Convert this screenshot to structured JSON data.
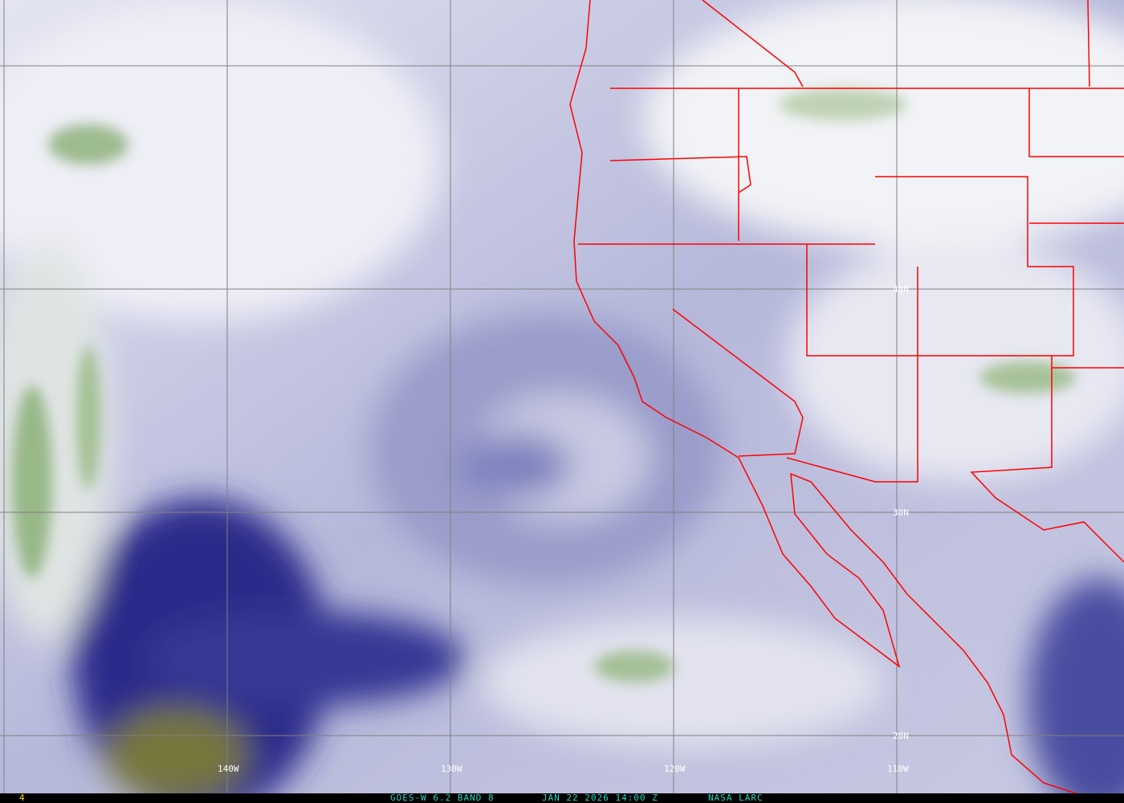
{
  "image": {
    "type": "satellite water vapor imagery",
    "colors": {
      "dry": "#1e1e7a",
      "moist": "#f2f2f8",
      "cloud_green": "#7fa865",
      "very_dry": "#7a7a3a",
      "boundaries": "#ff0000",
      "grid": "#808080"
    }
  },
  "grid_labels": {
    "latitudes": [
      "40N",
      "30N",
      "20N"
    ],
    "longitudes": [
      "140W",
      "130W",
      "120W",
      "110W"
    ]
  },
  "footer": {
    "frame_number": "4",
    "satellite": "GOES-W 6.2 BAND 8",
    "datetime": "JAN 22 2026 14:00 Z",
    "source": "NASA LARC"
  }
}
